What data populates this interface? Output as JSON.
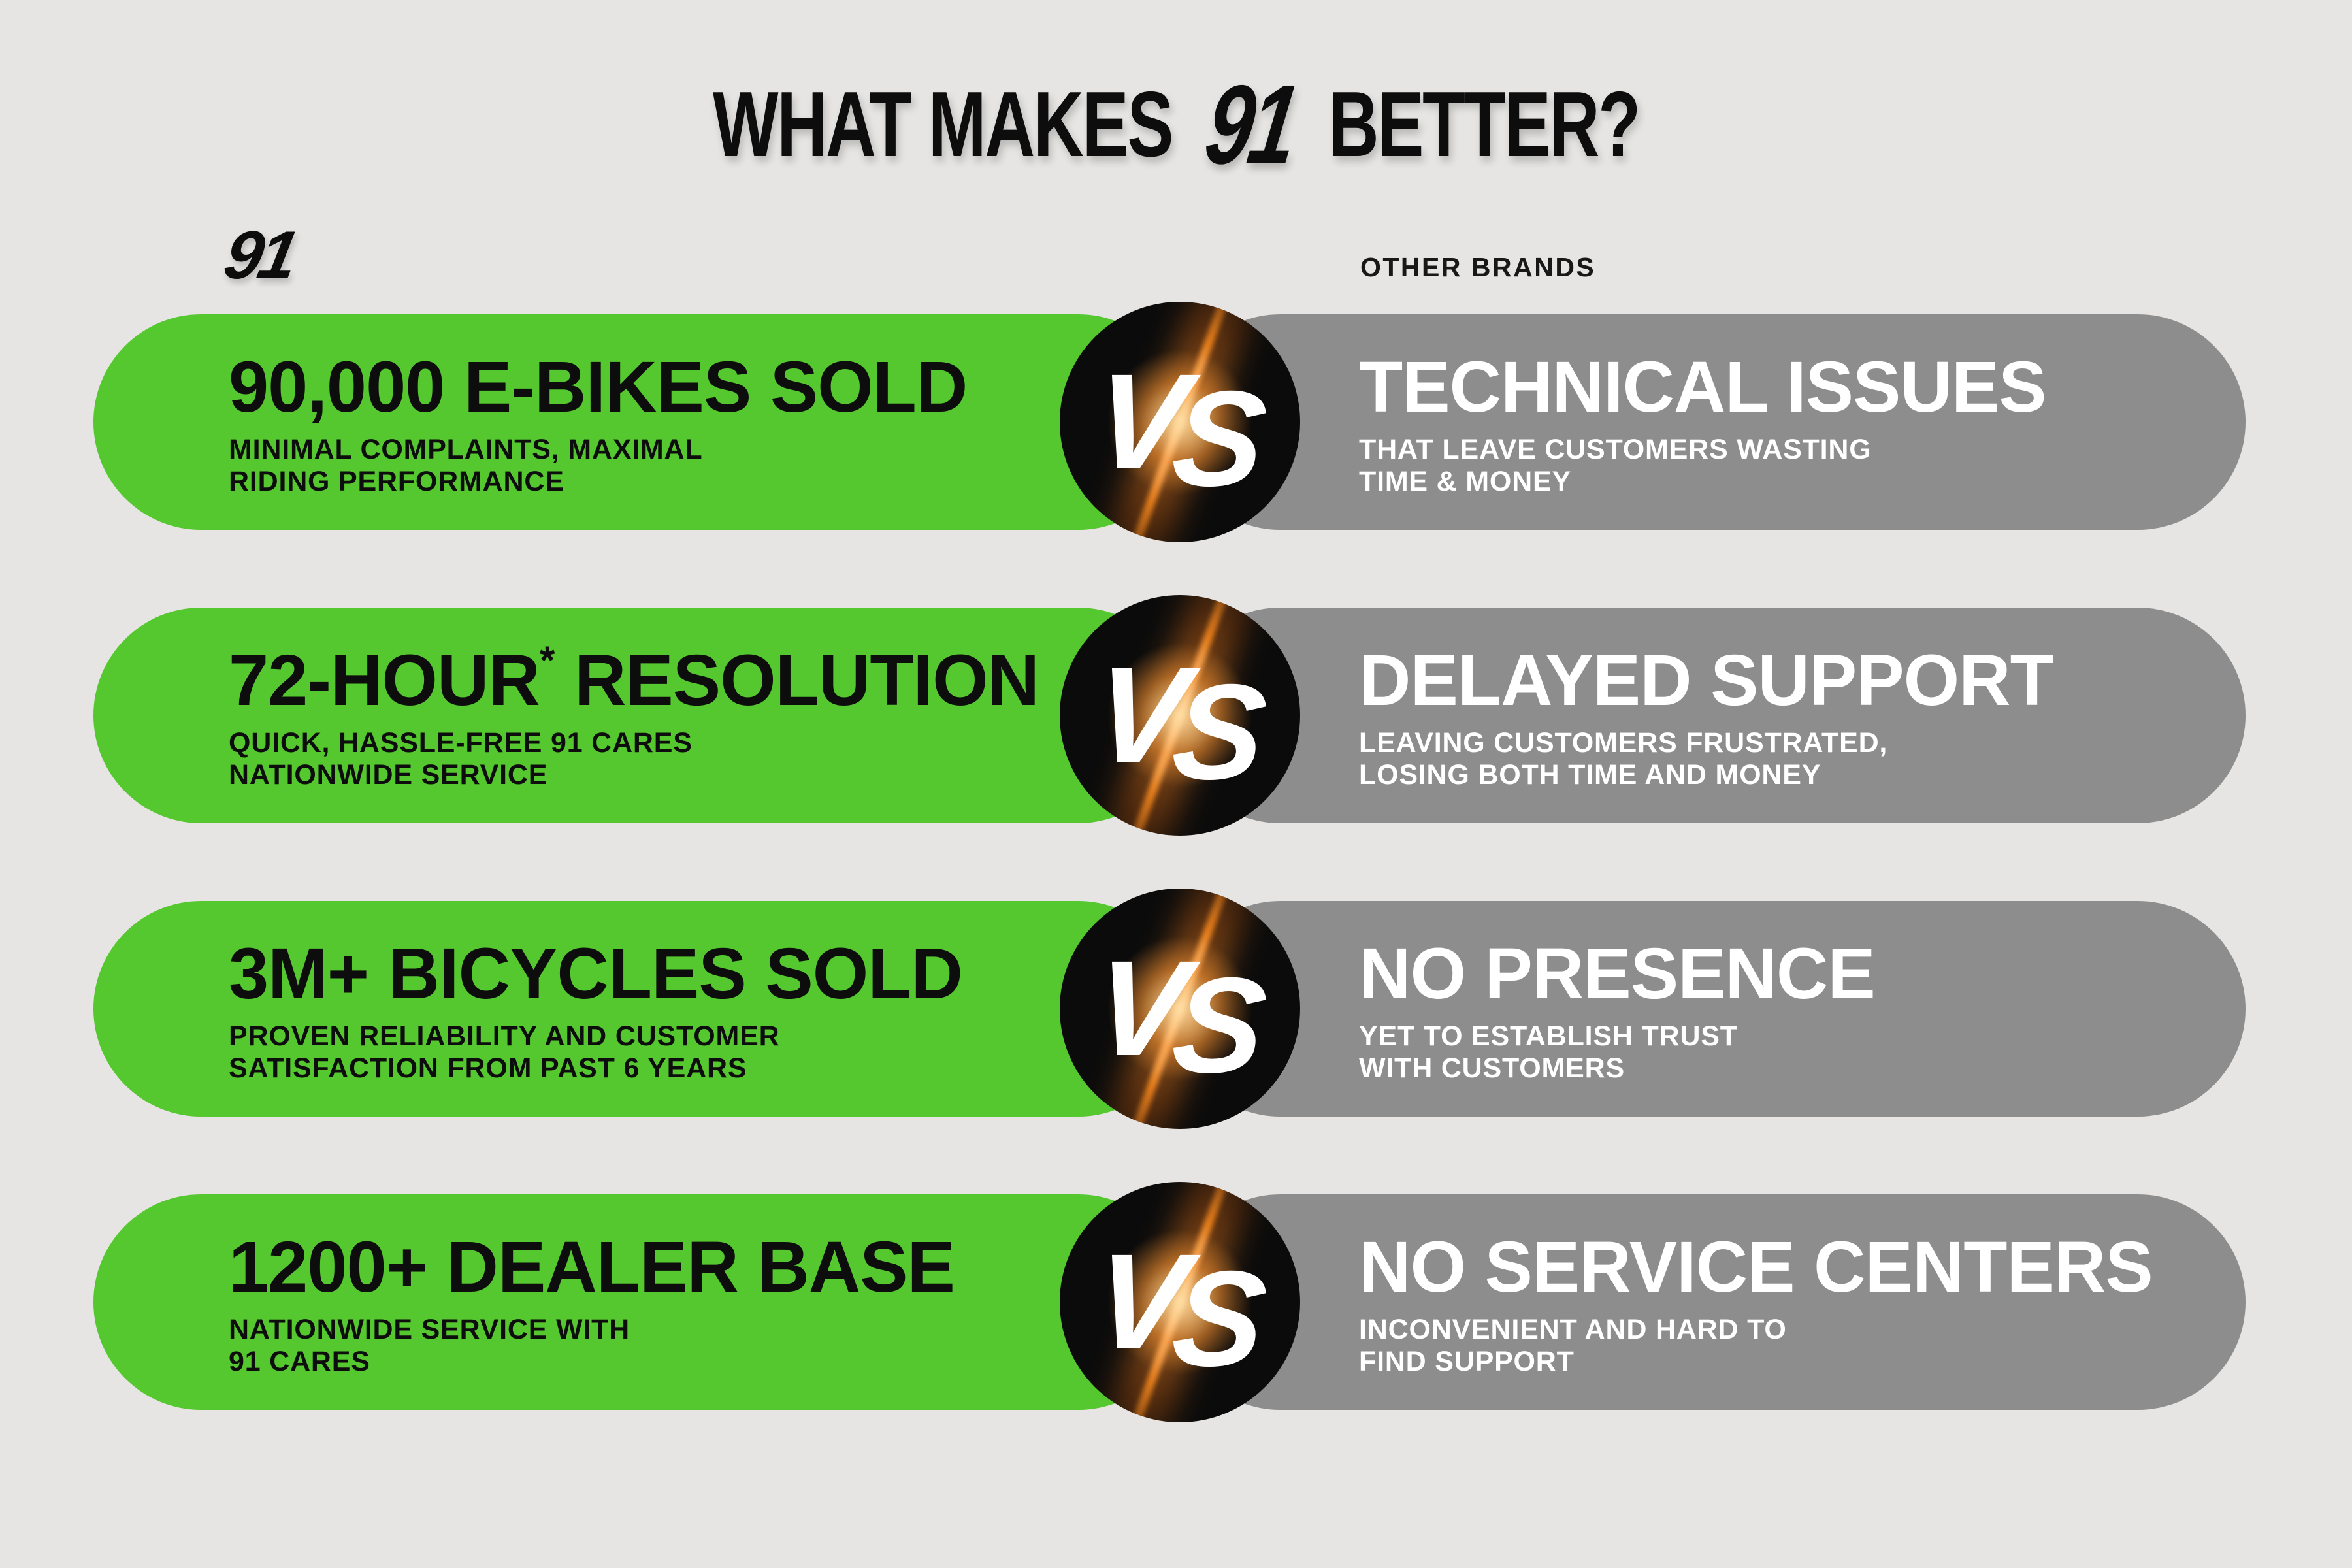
{
  "title": {
    "pre": "WHAT MAKES",
    "logo": "91",
    "post": "BETTER?"
  },
  "header": {
    "left_brand": "91",
    "right_label": "OTHER BRANDS"
  },
  "vs": {
    "v": "V",
    "s": "S"
  },
  "colors": {
    "bg": "#e6e5e3",
    "green": "#55c72f",
    "gray": "#8d8d8d",
    "ink": "#0d0d0d",
    "white": "#ffffff",
    "circle": "#0b0b0b",
    "streak_orange": "#ff8c1e"
  },
  "rows": [
    {
      "left": {
        "heading_pre": "90,000 E-BIKES SOLD",
        "heading_sup": "",
        "heading_post": "",
        "sub_lines": [
          "MINIMAL COMPLAINTS, MAXIMAL",
          "RIDING PERFORMANCE"
        ]
      },
      "right": {
        "heading_pre": "TECHNICAL ISSUES",
        "heading_sup": "",
        "heading_post": "",
        "sub_lines": [
          "THAT LEAVE CUSTOMERS WASTING",
          "TIME & MONEY"
        ]
      }
    },
    {
      "left": {
        "heading_pre": "72-HOUR",
        "heading_sup": "*",
        "heading_post": " RESOLUTION",
        "sub_lines": [
          "QUICK, HASSLE-FREE 91 CARES",
          "NATIONWIDE SERVICE"
        ]
      },
      "right": {
        "heading_pre": "DELAYED SUPPORT",
        "heading_sup": "",
        "heading_post": "",
        "sub_lines": [
          "LEAVING CUSTOMERS FRUSTRATED,",
          "LOSING BOTH TIME AND MONEY"
        ]
      }
    },
    {
      "left": {
        "heading_pre": "3M+ BICYCLES SOLD",
        "heading_sup": "",
        "heading_post": "",
        "sub_lines": [
          "PROVEN RELIABILITY AND CUSTOMER",
          "SATISFACTION FROM PAST 6 YEARS"
        ]
      },
      "right": {
        "heading_pre": "NO PRESENCE",
        "heading_sup": "",
        "heading_post": "",
        "sub_lines": [
          "YET TO ESTABLISH TRUST",
          "WITH CUSTOMERS"
        ]
      }
    },
    {
      "left": {
        "heading_pre": "1200+ DEALER BASE",
        "heading_sup": "",
        "heading_post": "",
        "sub_lines": [
          "NATIONWIDE SERVICE WITH",
          "91 CARES"
        ]
      },
      "right": {
        "heading_pre": "NO SERVICE CENTERS",
        "heading_sup": "",
        "heading_post": "",
        "sub_lines": [
          "INCONVENIENT AND HARD TO",
          "FIND SUPPORT"
        ]
      }
    }
  ],
  "layout": {
    "row_top_start": 481,
    "row_pitch": 449
  }
}
